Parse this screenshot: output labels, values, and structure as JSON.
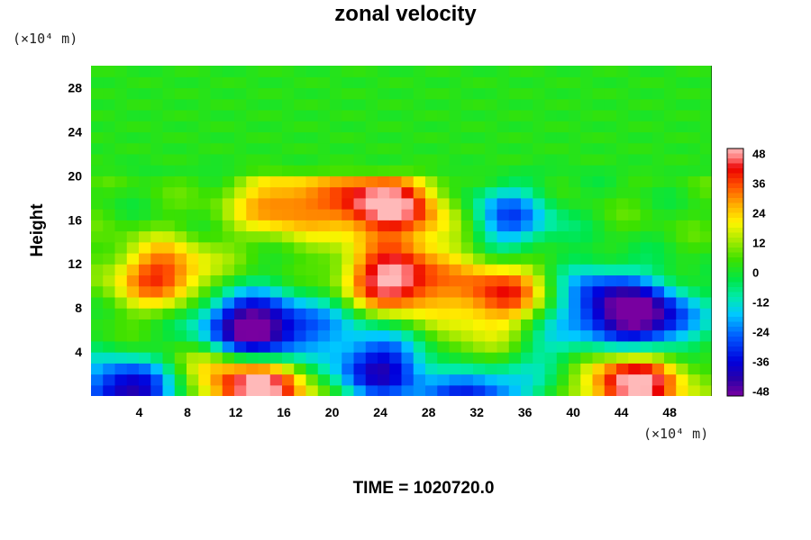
{
  "chart_data": {
    "type": "heatmap",
    "title": "zonal velocity",
    "ylabel": "Height",
    "x_unit": "(×10⁴ m)",
    "y_unit": "(×10⁴ m)",
    "footer": "TIME = 1020720.0",
    "xlim": [
      0,
      51.5
    ],
    "ylim": [
      0,
      30
    ],
    "x_ticks": [
      4,
      8,
      12,
      16,
      20,
      24,
      28,
      32,
      36,
      40,
      44,
      48
    ],
    "y_ticks": [
      4,
      8,
      12,
      16,
      20,
      24,
      28
    ],
    "colorbar": {
      "range": [
        -50,
        50
      ],
      "ticks": [
        48,
        36,
        24,
        12,
        0,
        -12,
        -24,
        -36,
        -48
      ]
    },
    "features": [
      {
        "x": 6,
        "y": 11,
        "value": 36
      },
      {
        "x": 25,
        "y": 10.5,
        "value": 50
      },
      {
        "x": 24,
        "y": 17.5,
        "value": 48
      },
      {
        "x": 16,
        "y": 17.5,
        "value": 30
      },
      {
        "x": 34,
        "y": 9.3,
        "value": 38
      },
      {
        "x": 30,
        "y": 15.5,
        "value": 20
      },
      {
        "x": 46,
        "y": 7,
        "value": -50
      },
      {
        "x": 42,
        "y": 9,
        "value": -30
      },
      {
        "x": 34,
        "y": 16,
        "value": -36
      },
      {
        "x": 14,
        "y": 5.5,
        "value": -45
      },
      {
        "x": 12,
        "y": 7,
        "value": -25
      },
      {
        "x": 24,
        "y": 2.5,
        "value": -42
      },
      {
        "x": 32,
        "y": 0.6,
        "value": -48
      },
      {
        "x": 3,
        "y": 0.4,
        "value": -48
      },
      {
        "x": 14,
        "y": 0.8,
        "value": 50
      },
      {
        "x": 45,
        "y": 1.2,
        "value": 50
      },
      {
        "x": 32,
        "y": 3,
        "value": 25
      },
      {
        "x": 20,
        "y": 7,
        "value": -15
      },
      {
        "x": 38,
        "y": 4.5,
        "value": -15
      },
      {
        "x": 10,
        "y": 3,
        "value": 15
      }
    ]
  }
}
